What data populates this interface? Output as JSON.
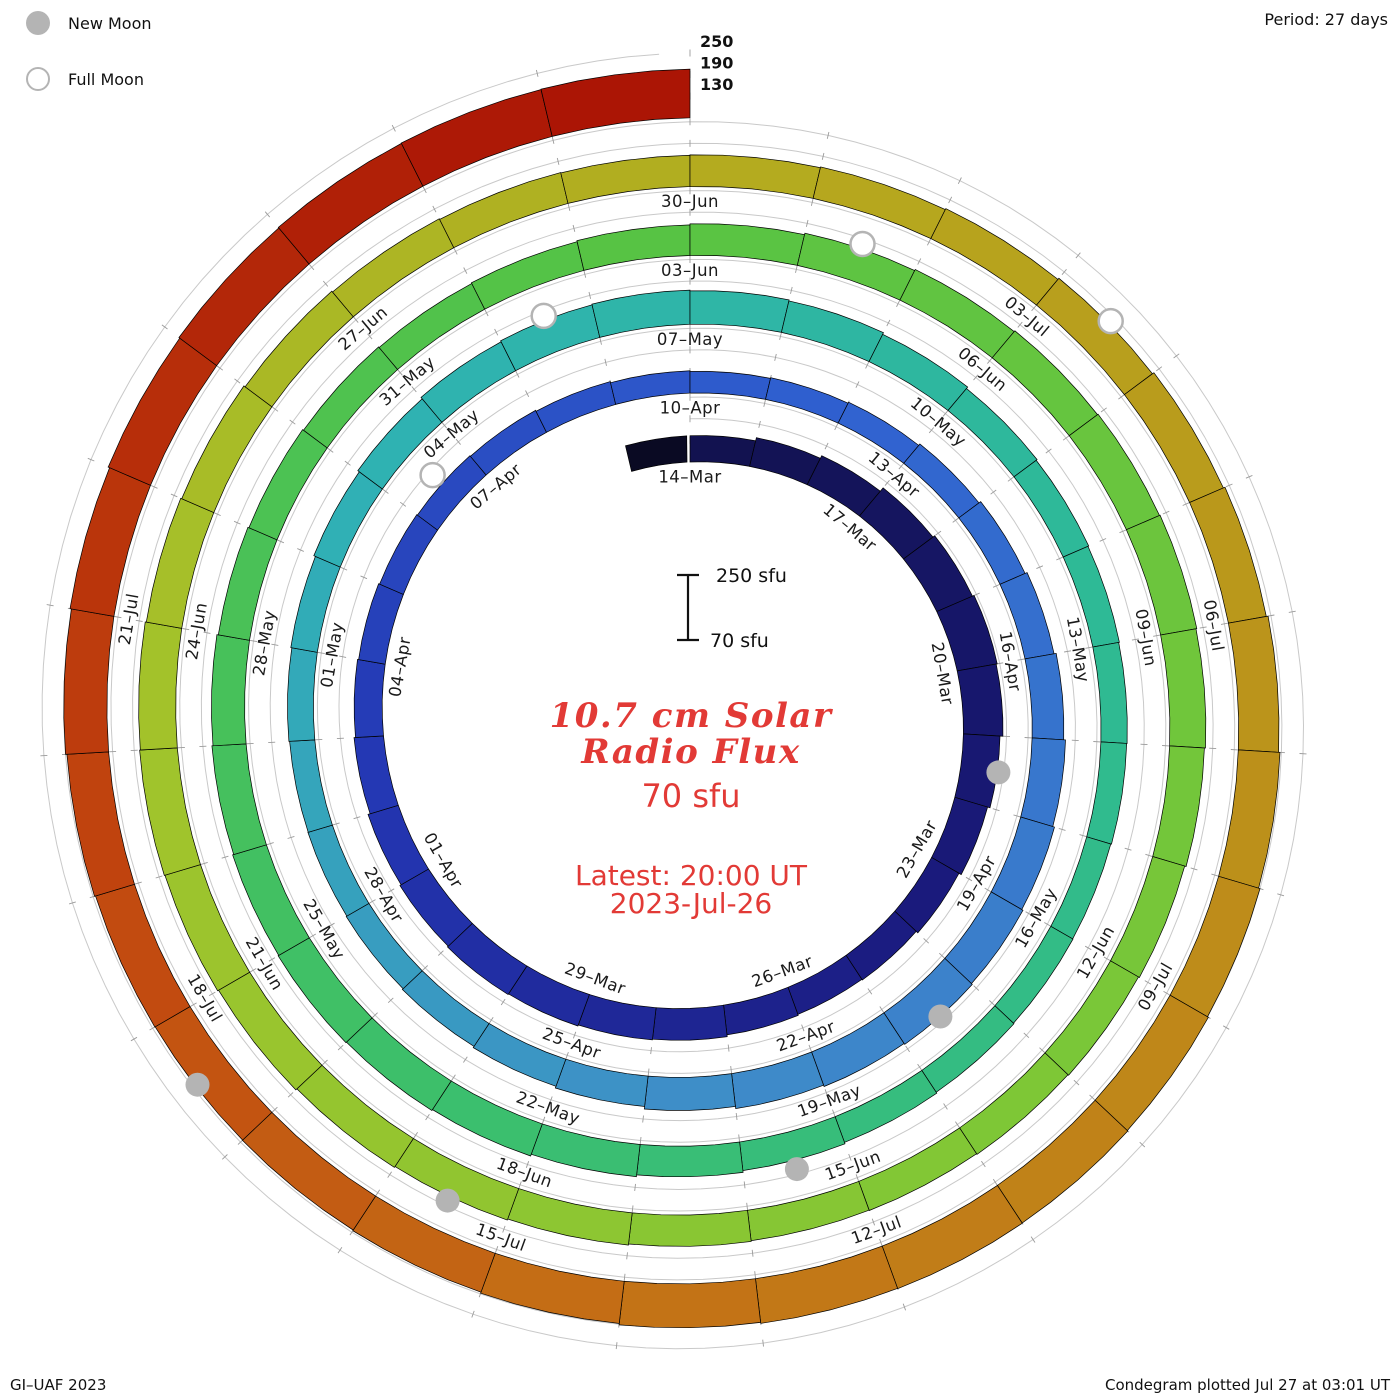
{
  "legend": {
    "new_moon_label": "New Moon",
    "full_moon_label": "Full Moon"
  },
  "header": {
    "period_label": "Period: 27 days"
  },
  "footer": {
    "credit": "GI–UAF 2023",
    "plotted": "Condegram plotted Jul 27 at 03:01 UT"
  },
  "center": {
    "title_line1": "10.7 cm Solar",
    "title_line2": "Radio Flux",
    "value_label": "70 sfu",
    "latest_line1": "Latest: 20:00 UT",
    "latest_line2": "2023-Jul-26",
    "accent_color": "#e23a36"
  },
  "scale": {
    "bar_top_label": "250 sfu",
    "bar_bottom_label": "70 sfu"
  },
  "chart_data": {
    "type": "spiral-bar",
    "title": "10.7 cm Solar Radio Flux",
    "subtitle": "Condegram, one spiral turn = 27 days",
    "period_days": 27,
    "start_date": "2023-03-14",
    "end_date": "2023-07-26",
    "unit": "sfu",
    "flux_base": 70,
    "flux_gridlines": [
      130,
      190,
      250
    ],
    "gridline_color": "#c9c9c9",
    "date_labels": [
      [
        "2023-03-14",
        "14–Mar"
      ],
      [
        "2023-03-17",
        "17–Mar"
      ],
      [
        "2023-03-20",
        "20–Mar"
      ],
      [
        "2023-03-23",
        "23–Mar"
      ],
      [
        "2023-03-26",
        "26–Mar"
      ],
      [
        "2023-03-29",
        "29–Mar"
      ],
      [
        "2023-04-01",
        "01–Apr"
      ],
      [
        "2023-04-04",
        "04–Apr"
      ],
      [
        "2023-04-07",
        "07–Apr"
      ],
      [
        "2023-04-10",
        "10–Apr"
      ],
      [
        "2023-04-13",
        "13–Apr"
      ],
      [
        "2023-04-16",
        "16–Apr"
      ],
      [
        "2023-04-19",
        "19–Apr"
      ],
      [
        "2023-04-22",
        "22–Apr"
      ],
      [
        "2023-04-25",
        "25–Apr"
      ],
      [
        "2023-04-28",
        "28–Apr"
      ],
      [
        "2023-05-01",
        "01–May"
      ],
      [
        "2023-05-04",
        "04–May"
      ],
      [
        "2023-05-07",
        "07–May"
      ],
      [
        "2023-05-10",
        "10–May"
      ],
      [
        "2023-05-13",
        "13–May"
      ],
      [
        "2023-05-16",
        "16–May"
      ],
      [
        "2023-05-19",
        "19–May"
      ],
      [
        "2023-05-22",
        "22–May"
      ],
      [
        "2023-05-25",
        "25–May"
      ],
      [
        "2023-05-28",
        "28–May"
      ],
      [
        "2023-05-31",
        "31–May"
      ],
      [
        "2023-06-03",
        "03–Jun"
      ],
      [
        "2023-06-06",
        "06–Jun"
      ],
      [
        "2023-06-09",
        "09–Jun"
      ],
      [
        "2023-06-12",
        "12–Jun"
      ],
      [
        "2023-06-15",
        "15–Jun"
      ],
      [
        "2023-06-18",
        "18–Jun"
      ],
      [
        "2023-06-21",
        "21–Jun"
      ],
      [
        "2023-06-24",
        "24–Jun"
      ],
      [
        "2023-06-27",
        "27–Jun"
      ],
      [
        "2023-06-30",
        "30–Jun"
      ],
      [
        "2023-07-03",
        "03–Jul"
      ],
      [
        "2023-07-06",
        "06–Jul"
      ],
      [
        "2023-07-09",
        "09–Jul"
      ],
      [
        "2023-07-12",
        "12–Jul"
      ],
      [
        "2023-07-15",
        "15–Jul"
      ],
      [
        "2023-07-18",
        "18–Jul"
      ],
      [
        "2023-07-21",
        "21–Jul"
      ]
    ],
    "daily_flux": [
      143,
      152,
      160,
      172,
      178,
      183,
      180,
      172,
      165,
      158,
      152,
      150,
      153,
      158,
      160,
      163,
      165,
      162,
      158,
      152,
      148,
      145,
      142,
      140,
      138,
      135,
      132,
      130,
      132,
      135,
      140,
      146,
      152,
      158,
      163,
      168,
      172,
      175,
      172,
      168,
      162,
      155,
      150,
      146,
      143,
      141,
      140,
      142,
      145,
      150,
      155,
      160,
      163,
      165,
      163,
      160,
      155,
      150,
      147,
      145,
      143,
      142,
      140,
      141,
      143,
      146,
      150,
      155,
      160,
      165,
      168,
      170,
      168,
      165,
      162,
      158,
      155,
      152,
      150,
      152,
      155,
      158,
      162,
      165,
      168,
      170,
      172,
      170,
      167,
      163,
      160,
      158,
      156,
      155,
      157,
      160,
      163,
      166,
      170,
      173,
      175,
      173,
      170,
      167,
      163,
      160,
      158,
      157,
      158,
      160,
      163,
      167,
      172,
      177,
      182,
      186,
      190,
      193,
      195,
      196,
      195,
      192,
      188,
      185,
      183,
      182,
      183,
      186,
      190,
      194,
      198,
      201,
      203,
      204,
      205
    ],
    "moons": {
      "new": [
        "2023-03-21",
        "2023-04-20",
        "2023-05-19",
        "2023-06-18",
        "2023-07-17"
      ],
      "full": [
        "2023-04-06",
        "2023-05-05",
        "2023-06-04",
        "2023-07-03"
      ]
    },
    "color_stops": [
      [
        "2023-03-14",
        "#12124e"
      ],
      [
        "2023-03-24",
        "#1a1a7e"
      ],
      [
        "2023-04-02",
        "#2336b2"
      ],
      [
        "2023-04-12",
        "#3061d0"
      ],
      [
        "2023-04-23",
        "#3f8cc9"
      ],
      [
        "2023-05-03",
        "#2fb2b4"
      ],
      [
        "2023-05-13",
        "#2eba94"
      ],
      [
        "2023-05-23",
        "#3cbf6c"
      ],
      [
        "2023-06-02",
        "#55c345"
      ],
      [
        "2023-06-13",
        "#7cc737"
      ],
      [
        "2023-06-23",
        "#a2c42b"
      ],
      [
        "2023-07-01",
        "#b5a91e"
      ],
      [
        "2023-07-08",
        "#bd8e1a"
      ],
      [
        "2023-07-14",
        "#c47116"
      ],
      [
        "2023-07-19",
        "#c2470f"
      ],
      [
        "2023-07-26",
        "#ab1505"
      ]
    ]
  }
}
